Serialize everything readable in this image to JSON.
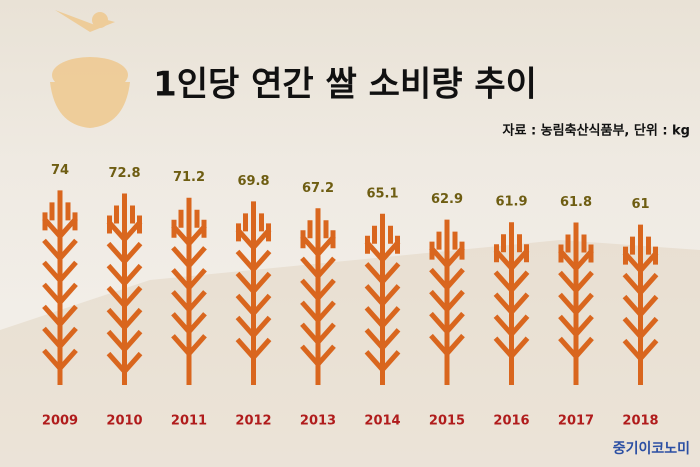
{
  "chart_data": {
    "type": "bar",
    "title": "1인당 연간 쌀 소비량 추이",
    "subtitle": "자료 : 농림축산식품부, 단위 : kg",
    "credit": "중기이코노미",
    "categories": [
      "2009",
      "2010",
      "2011",
      "2012",
      "2013",
      "2014",
      "2015",
      "2016",
      "2017",
      "2018"
    ],
    "values": [
      74,
      72.8,
      71.2,
      69.8,
      67.2,
      65.1,
      62.9,
      61.9,
      61.8,
      61
    ],
    "color": "#d9661e"
  }
}
